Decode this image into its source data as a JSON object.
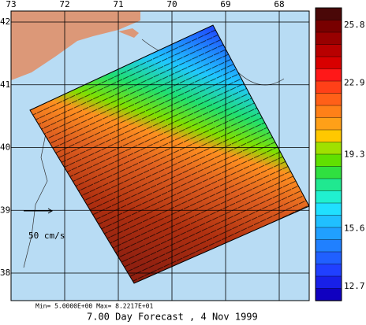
{
  "lon_ticks": [
    73,
    72,
    71,
    70,
    69,
    68
  ],
  "lat_ticks": [
    42,
    41,
    40,
    39,
    38
  ],
  "colorbar": {
    "labels": [
      25.8,
      22.9,
      19.3,
      15.6,
      12.7
    ]
  },
  "scale_label": "50 cm/s",
  "range_text": "Min= 5.0000E+00  Max= 8.2217E+01",
  "caption": "7.00 Day Forecast ,  4 Nov 1999"
}
